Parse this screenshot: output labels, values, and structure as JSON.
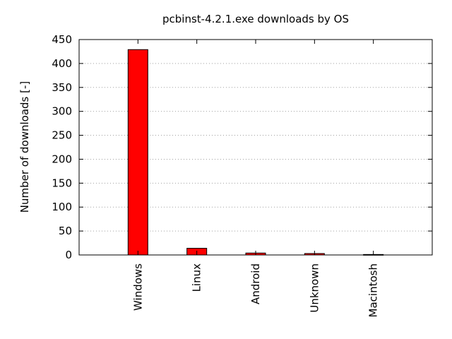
{
  "chart_data": {
    "type": "bar",
    "title": "pcbinst-4.2.1.exe downloads by OS",
    "xlabel": "",
    "ylabel": "Number of downloads [-]",
    "categories": [
      "Windows",
      "Linux",
      "Android",
      "Unknown",
      "Macintosh"
    ],
    "values": [
      429,
      14,
      4,
      3,
      1
    ],
    "ylim": [
      0,
      450
    ],
    "yticks": [
      0,
      50,
      100,
      150,
      200,
      250,
      300,
      350,
      400,
      450
    ],
    "grid": "horizontal-dotted",
    "legend": "none",
    "bar_color": "#ff0000"
  }
}
